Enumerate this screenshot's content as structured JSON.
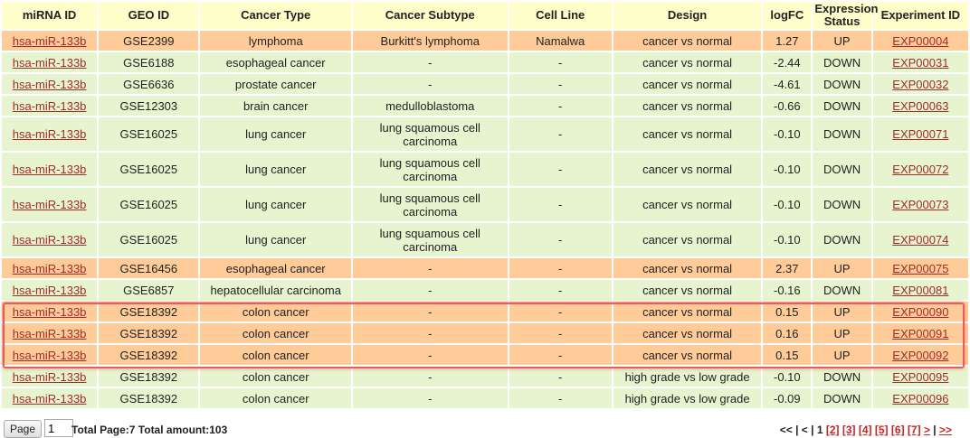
{
  "headers": [
    "miRNA ID",
    "GEO ID",
    "Cancer Type",
    "Cancer Subtype",
    "Cell Line",
    "Design",
    "logFC",
    "Expression\nStatus",
    "Experiment ID"
  ],
  "rows": [
    {
      "mirna": "hsa-miR-133b",
      "geo": "GSE2399",
      "type": "lymphoma",
      "subtype": "Burkitt's lymphoma",
      "cell": "Namalwa",
      "design": "cancer vs normal",
      "logfc": "1.27",
      "status": "UP",
      "exp": "EXP00004"
    },
    {
      "mirna": "hsa-miR-133b",
      "geo": "GSE6188",
      "type": "esophageal cancer",
      "subtype": "-",
      "cell": "-",
      "design": "cancer vs normal",
      "logfc": "-2.44",
      "status": "DOWN",
      "exp": "EXP00031"
    },
    {
      "mirna": "hsa-miR-133b",
      "geo": "GSE6636",
      "type": "prostate cancer",
      "subtype": "-",
      "cell": "-",
      "design": "cancer vs normal",
      "logfc": "-4.61",
      "status": "DOWN",
      "exp": "EXP00032"
    },
    {
      "mirna": "hsa-miR-133b",
      "geo": "GSE12303",
      "type": "brain cancer",
      "subtype": "medulloblastoma",
      "cell": "-",
      "design": "cancer vs normal",
      "logfc": "-0.66",
      "status": "DOWN",
      "exp": "EXP00063"
    },
    {
      "mirna": "hsa-miR-133b",
      "geo": "GSE16025",
      "type": "lung cancer",
      "subtype": "lung squamous cell carcinoma",
      "cell": "-",
      "design": "cancer vs normal",
      "logfc": "-0.10",
      "status": "DOWN",
      "exp": "EXP00071"
    },
    {
      "mirna": "hsa-miR-133b",
      "geo": "GSE16025",
      "type": "lung cancer",
      "subtype": "lung squamous cell carcinoma",
      "cell": "-",
      "design": "cancer vs normal",
      "logfc": "-0.10",
      "status": "DOWN",
      "exp": "EXP00072"
    },
    {
      "mirna": "hsa-miR-133b",
      "geo": "GSE16025",
      "type": "lung cancer",
      "subtype": "lung squamous cell carcinoma",
      "cell": "-",
      "design": "cancer vs normal",
      "logfc": "-0.10",
      "status": "DOWN",
      "exp": "EXP00073"
    },
    {
      "mirna": "hsa-miR-133b",
      "geo": "GSE16025",
      "type": "lung cancer",
      "subtype": "lung squamous cell carcinoma",
      "cell": "-",
      "design": "cancer vs normal",
      "logfc": "-0.10",
      "status": "DOWN",
      "exp": "EXP00074"
    },
    {
      "mirna": "hsa-miR-133b",
      "geo": "GSE16456",
      "type": "esophageal cancer",
      "subtype": "-",
      "cell": "-",
      "design": "cancer vs normal",
      "logfc": "2.37",
      "status": "UP",
      "exp": "EXP00075"
    },
    {
      "mirna": "hsa-miR-133b",
      "geo": "GSE6857",
      "type": "hepatocellular carcinoma",
      "subtype": "-",
      "cell": "-",
      "design": "cancer vs normal",
      "logfc": "-0.16",
      "status": "DOWN",
      "exp": "EXP00081"
    },
    {
      "mirna": "hsa-miR-133b",
      "geo": "GSE18392",
      "type": "colon cancer",
      "subtype": "-",
      "cell": "-",
      "design": "cancer vs normal",
      "logfc": "0.15",
      "status": "UP",
      "exp": "EXP00090"
    },
    {
      "mirna": "hsa-miR-133b",
      "geo": "GSE18392",
      "type": "colon cancer",
      "subtype": "-",
      "cell": "-",
      "design": "cancer vs normal",
      "logfc": "0.16",
      "status": "UP",
      "exp": "EXP00091"
    },
    {
      "mirna": "hsa-miR-133b",
      "geo": "GSE18392",
      "type": "colon cancer",
      "subtype": "-",
      "cell": "-",
      "design": "cancer vs normal",
      "logfc": "0.15",
      "status": "UP",
      "exp": "EXP00092"
    },
    {
      "mirna": "hsa-miR-133b",
      "geo": "GSE18392",
      "type": "colon cancer",
      "subtype": "-",
      "cell": "-",
      "design": "high grade vs low grade",
      "logfc": "-0.10",
      "status": "DOWN",
      "exp": "EXP00095"
    },
    {
      "mirna": "hsa-miR-133b",
      "geo": "GSE18392",
      "type": "colon cancer",
      "subtype": "-",
      "cell": "-",
      "design": "high grade vs low grade",
      "logfc": "-0.09",
      "status": "DOWN",
      "exp": "EXP00096"
    }
  ],
  "footer": {
    "page_button": "Page",
    "page_value": "1",
    "total_text": "Total Page:7 Total amount:103",
    "pager_prefix": "<< | < | ",
    "current_page": "1",
    "pages": [
      "[2]",
      "[3]",
      "[4]",
      "[5]",
      "[6]",
      "[7]"
    ],
    "next": ">",
    "last": ">>"
  },
  "colors": {
    "up_row": "#ffcc99",
    "down_row": "#e6f5d0",
    "header": "#ffffcc",
    "up_text": "#ee2222",
    "down_text": "#119911",
    "link": "#a52a2a"
  }
}
